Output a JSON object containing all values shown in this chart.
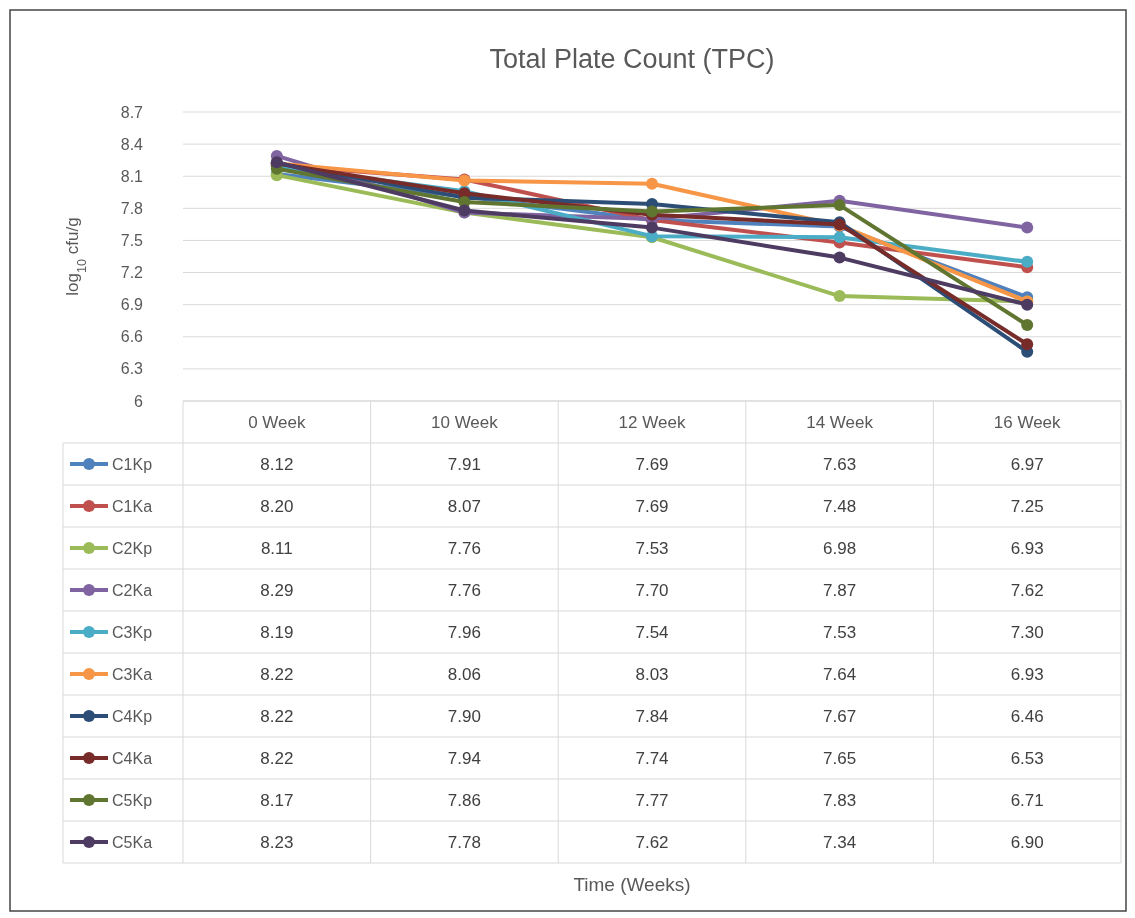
{
  "chart_data": {
    "type": "line",
    "title": "Total Plate Count (TPC)",
    "ylabel": "log$_{10}$ cfu/g",
    "annotations": [
      "Time (Weeks)"
    ],
    "categories": [
      "0 Week",
      "10 Week",
      "12 Week",
      "14 Week",
      "16 Week"
    ],
    "ylim": [
      6,
      8.7
    ],
    "yticks": [
      6,
      6.3,
      6.6,
      6.9,
      7.2,
      7.5,
      7.8,
      8.1,
      8.4,
      8.7
    ],
    "grid": "y",
    "legend": "bottom",
    "marker": "circle",
    "line_style": "solid",
    "series": [
      {
        "name": "C1Kp",
        "color": "#4f81bd",
        "values": [
          8.12,
          7.91,
          7.69,
          7.63,
          6.97
        ],
        "value_labels": [
          "8.12",
          "7.91",
          "7.69",
          "7.63",
          "6.97"
        ]
      },
      {
        "name": "C1Ka",
        "color": "#c0504d",
        "values": [
          8.2,
          8.07,
          7.69,
          7.48,
          7.25
        ],
        "value_labels": [
          "8.20",
          "8.07",
          "7.69",
          "7.48",
          "7.25"
        ]
      },
      {
        "name": "C2Kp",
        "color": "#9bbb59",
        "values": [
          8.11,
          7.76,
          7.53,
          6.98,
          6.93
        ],
        "value_labels": [
          "8.11",
          "7.76",
          "7.53",
          "6.98",
          "6.93"
        ]
      },
      {
        "name": "C2Ka",
        "color": "#8064a2",
        "values": [
          8.29,
          7.76,
          7.7,
          7.87,
          7.62
        ],
        "value_labels": [
          "8.29",
          "7.76",
          "7.70",
          "7.87",
          "7.62"
        ]
      },
      {
        "name": "C3Kp",
        "color": "#4bacc6",
        "values": [
          8.19,
          7.96,
          7.54,
          7.53,
          7.3
        ],
        "value_labels": [
          "8.19",
          "7.96",
          "7.54",
          "7.53",
          "7.30"
        ]
      },
      {
        "name": "C3Ka",
        "color": "#f79646",
        "values": [
          8.22,
          8.06,
          8.03,
          7.64,
          6.93
        ],
        "value_labels": [
          "8.22",
          "8.06",
          "8.03",
          "7.64",
          "6.93"
        ]
      },
      {
        "name": "C4Kp",
        "color": "#2c4d75",
        "values": [
          8.22,
          7.9,
          7.84,
          7.67,
          6.46
        ],
        "value_labels": [
          "8.22",
          "7.90",
          "7.84",
          "7.67",
          "6.46"
        ]
      },
      {
        "name": "C4Ka",
        "color": "#772c2a",
        "values": [
          8.22,
          7.94,
          7.74,
          7.65,
          6.53
        ],
        "value_labels": [
          "8.22",
          "7.94",
          "7.74",
          "7.65",
          "6.53"
        ]
      },
      {
        "name": "C5Kp",
        "color": "#5f7530",
        "values": [
          8.17,
          7.86,
          7.77,
          7.83,
          6.71
        ],
        "value_labels": [
          "8.17",
          "7.86",
          "7.77",
          "7.83",
          "6.71"
        ]
      },
      {
        "name": "C5Ka",
        "color": "#4d3b62",
        "values": [
          8.23,
          7.78,
          7.62,
          7.34,
          6.9
        ],
        "value_labels": [
          "8.23",
          "7.78",
          "7.62",
          "7.34",
          "6.90"
        ]
      }
    ]
  }
}
